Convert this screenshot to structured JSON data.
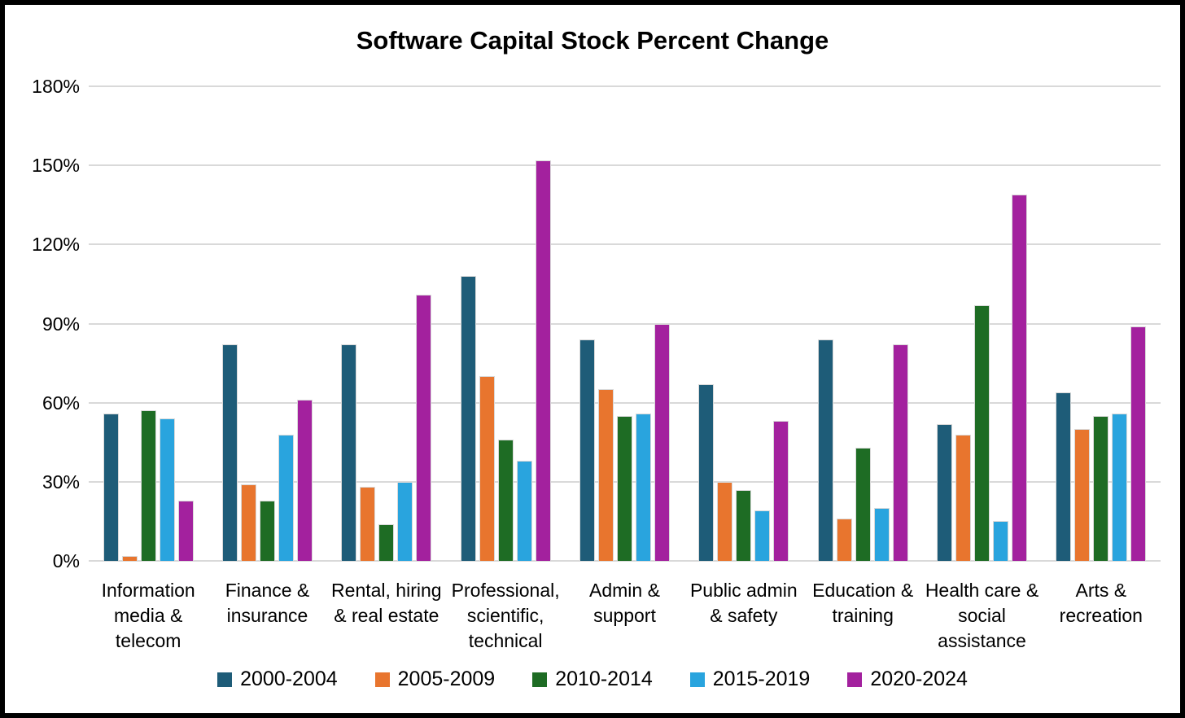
{
  "title": "Software Capital Stock Percent Change",
  "chart_data": {
    "type": "bar",
    "title": "Software Capital Stock Percent Change",
    "xlabel": "",
    "ylabel": "",
    "ylim": [
      0,
      180
    ],
    "ytick_step": 30,
    "ytick_suffix": "%",
    "grid": "horizontal",
    "grid_color": "#d9d9d9",
    "legend_position": "bottom",
    "categories": [
      "Information media & telecom",
      "Finance & insurance",
      "Rental, hiring & real estate",
      "Professional, scientific, technical",
      "Admin & support",
      "Public admin & safety",
      "Education & training",
      "Health care & social assistance",
      "Arts & recreation"
    ],
    "category_labels_wrapped": [
      "Information\nmedia &\ntelecom",
      "Finance &\ninsurance",
      "Rental, hiring\n& real estate",
      "Professional,\nscientific,\ntechnical",
      "Admin &\nsupport",
      "Public admin\n& safety",
      "Education &\ntraining",
      "Health care &\nsocial\nassistance",
      "Arts &\nrecreation"
    ],
    "series": [
      {
        "name": "2000-2004",
        "color": "#1e5c78",
        "values": [
          56,
          82,
          82,
          108,
          84,
          67,
          84,
          52,
          64
        ]
      },
      {
        "name": "2005-2009",
        "color": "#e8752e",
        "values": [
          2,
          29,
          28,
          70,
          65,
          30,
          16,
          48,
          50
        ]
      },
      {
        "name": "2010-2014",
        "color": "#1e6c24",
        "values": [
          57,
          23,
          14,
          46,
          55,
          27,
          43,
          97,
          55
        ]
      },
      {
        "name": "2015-2019",
        "color": "#29a4de",
        "values": [
          54,
          48,
          30,
          38,
          56,
          19,
          20,
          15,
          56
        ]
      },
      {
        "name": "2020-2024",
        "color": "#a3219e",
        "values": [
          23,
          61,
          101,
          152,
          90,
          53,
          82,
          139,
          89
        ]
      }
    ]
  }
}
